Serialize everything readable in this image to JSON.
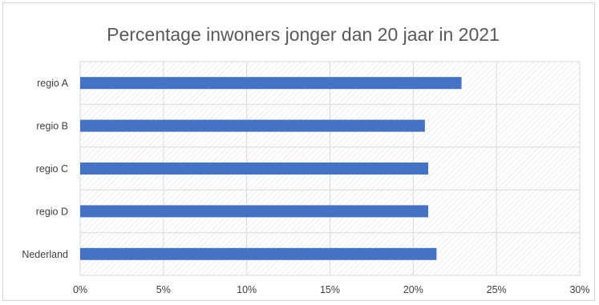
{
  "chart_data": {
    "type": "bar",
    "orientation": "horizontal",
    "title": "Percentage inwoners jonger dan 20 jaar in 2021",
    "xlabel": "",
    "ylabel": "",
    "categories": [
      "regio A",
      "regio B",
      "regio C",
      "regio D",
      "Nederland"
    ],
    "values": [
      0.229,
      0.207,
      0.209,
      0.209,
      0.214
    ],
    "xlim": [
      0,
      0.3
    ],
    "xticks": [
      "0%",
      "5%",
      "10%",
      "15%",
      "20%",
      "25%",
      "30%"
    ],
    "grid": true,
    "legend": "none",
    "colors": {
      "bar": "#4472C4",
      "grid": "#d9d9d9",
      "plot_pattern": "#dcdcdc",
      "title": "#595959",
      "tick": "#404040"
    }
  }
}
